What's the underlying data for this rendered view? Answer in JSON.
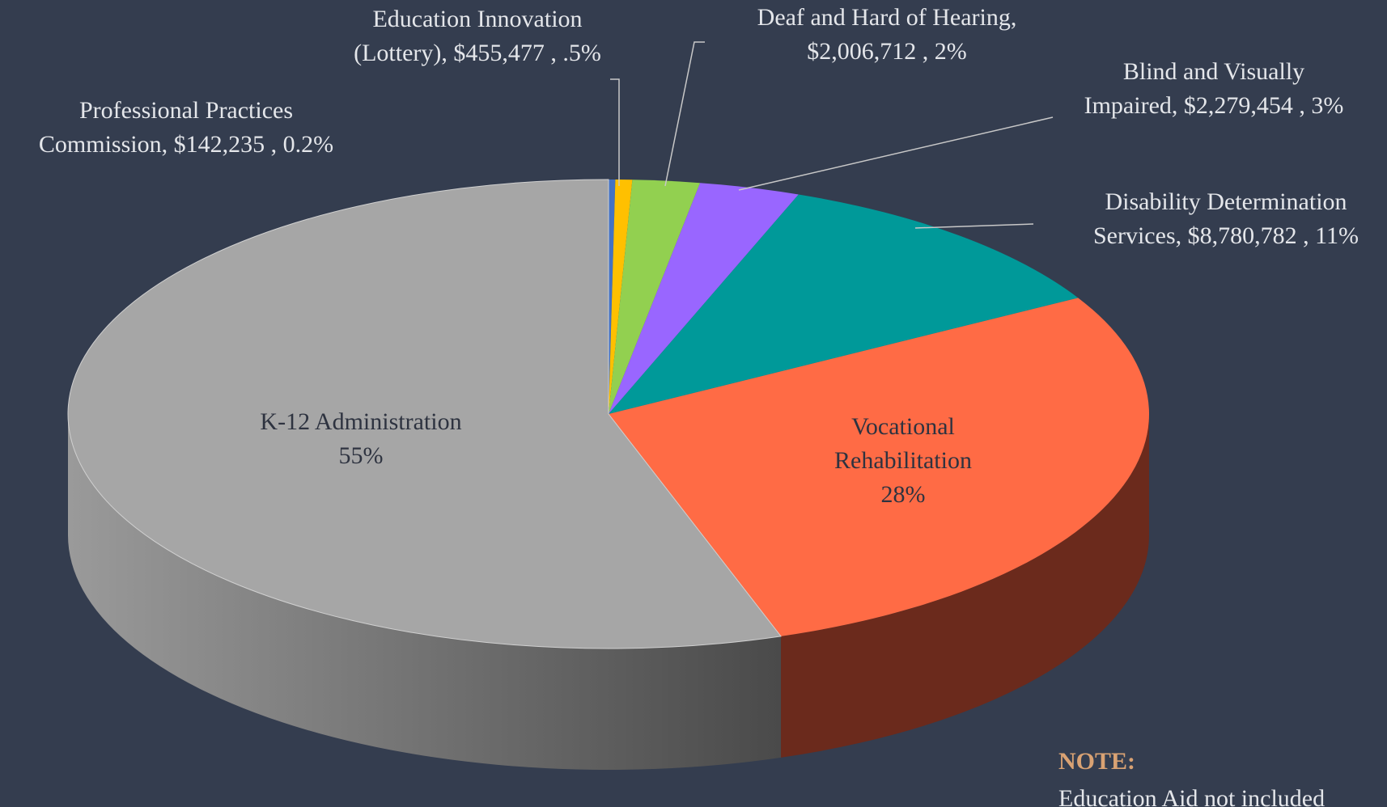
{
  "chart_data": {
    "type": "pie3d",
    "values": [
      0.2,
      0.5,
      2,
      3,
      11,
      28,
      55
    ],
    "value_labels": [
      [
        "Professional Practices",
        "Commission, $142,235 , 0.2%"
      ],
      [
        "Education Innovation",
        "(Lottery), $455,477 , .5%"
      ],
      [
        "Deaf and Hard of Hearing,",
        "$2,006,712 , 2%"
      ],
      [
        "Blind and Visually",
        "Impaired, $2,279,454 , 3%"
      ],
      [
        "Disability Determination",
        "Services, $8,780,782 , 11%"
      ],
      [
        "Vocational",
        "Rehabilitation",
        "28%"
      ],
      [
        "K-12 Administration",
        "55%"
      ]
    ],
    "colors": [
      "#4472c4",
      "#ffc000",
      "#92d050",
      "#9966ff",
      "#009999",
      "#ff6b45",
      "#a6a6a6"
    ],
    "note_title": "NOTE:",
    "note_text": "Education Aid not included"
  }
}
